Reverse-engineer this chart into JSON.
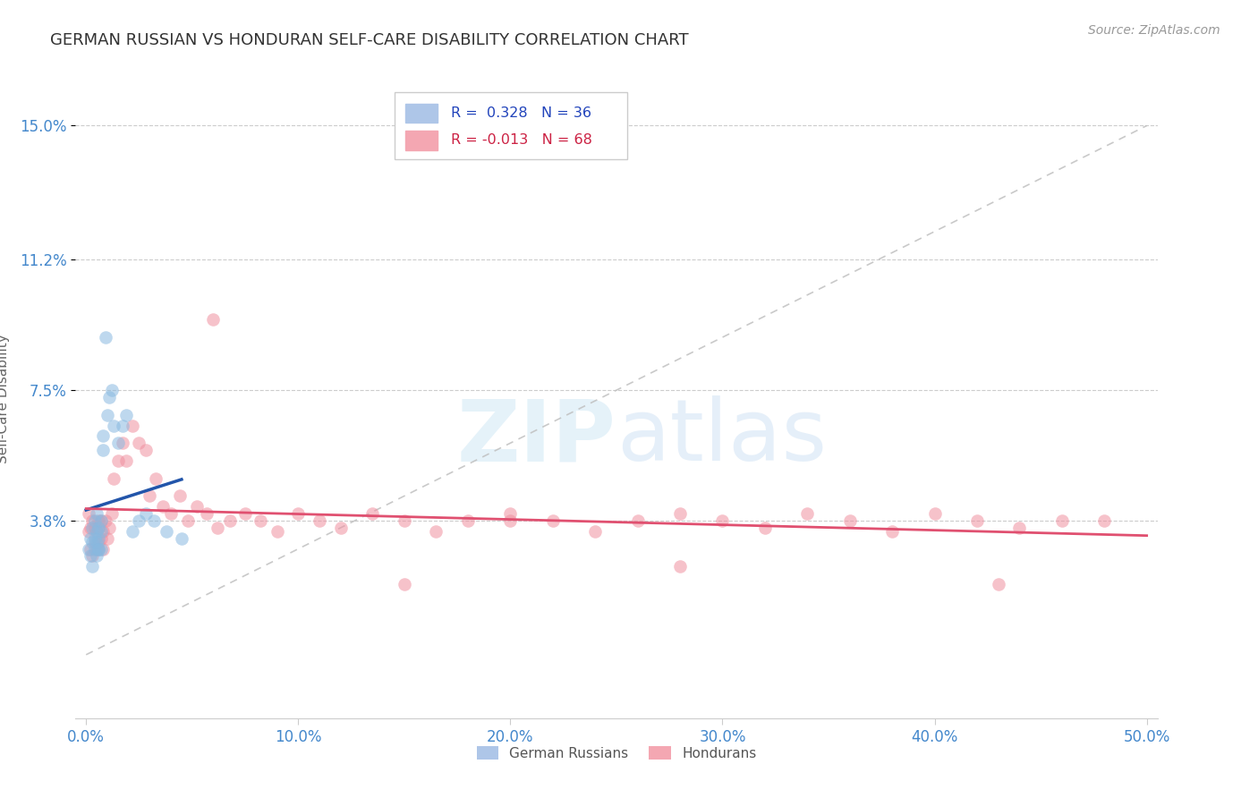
{
  "title": "GERMAN RUSSIAN VS HONDURAN SELF-CARE DISABILITY CORRELATION CHART",
  "source": "Source: ZipAtlas.com",
  "ylabel": "Self-Care Disability",
  "xlim": [
    -0.005,
    0.505
  ],
  "ylim": [
    -0.018,
    0.163
  ],
  "xticks": [
    0.0,
    0.1,
    0.2,
    0.3,
    0.4,
    0.5
  ],
  "yticks": [
    0.038,
    0.075,
    0.112,
    0.15
  ],
  "yticklabels": [
    "3.8%",
    "7.5%",
    "11.2%",
    "15.0%"
  ],
  "grid_color": "#cccccc",
  "background_color": "#ffffff",
  "blue_color": "#89b9e0",
  "pink_color": "#f090a0",
  "trendline_blue_color": "#2255aa",
  "trendline_pink_color": "#e05070",
  "diagonal_color": "#c0c0c0",
  "title_color": "#333333",
  "axis_label_color": "#666666",
  "tick_label_color": "#4488cc",
  "title_fontsize": 13,
  "source_fontsize": 10,
  "axis_label_fontsize": 11,
  "tick_fontsize": 12,
  "gr_x": [
    0.001,
    0.002,
    0.002,
    0.003,
    0.003,
    0.003,
    0.004,
    0.004,
    0.004,
    0.005,
    0.005,
    0.005,
    0.005,
    0.006,
    0.006,
    0.006,
    0.006,
    0.007,
    0.007,
    0.007,
    0.008,
    0.008,
    0.009,
    0.01,
    0.011,
    0.012,
    0.013,
    0.015,
    0.017,
    0.019,
    0.022,
    0.025,
    0.028,
    0.032,
    0.038,
    0.045
  ],
  "gr_y": [
    0.03,
    0.028,
    0.033,
    0.025,
    0.032,
    0.036,
    0.03,
    0.033,
    0.038,
    0.028,
    0.032,
    0.035,
    0.04,
    0.03,
    0.033,
    0.036,
    0.03,
    0.035,
    0.038,
    0.03,
    0.058,
    0.062,
    0.09,
    0.068,
    0.073,
    0.075,
    0.065,
    0.06,
    0.065,
    0.068,
    0.035,
    0.038,
    0.04,
    0.038,
    0.035,
    0.033
  ],
  "hon_x": [
    0.001,
    0.001,
    0.002,
    0.002,
    0.003,
    0.003,
    0.004,
    0.004,
    0.005,
    0.005,
    0.006,
    0.006,
    0.006,
    0.007,
    0.007,
    0.008,
    0.008,
    0.009,
    0.01,
    0.011,
    0.012,
    0.013,
    0.015,
    0.017,
    0.019,
    0.022,
    0.025,
    0.028,
    0.03,
    0.033,
    0.036,
    0.04,
    0.044,
    0.048,
    0.052,
    0.057,
    0.062,
    0.068,
    0.075,
    0.082,
    0.09,
    0.1,
    0.11,
    0.12,
    0.135,
    0.15,
    0.165,
    0.18,
    0.2,
    0.22,
    0.24,
    0.26,
    0.28,
    0.3,
    0.32,
    0.34,
    0.36,
    0.38,
    0.4,
    0.42,
    0.44,
    0.46,
    0.28,
    0.06,
    0.15,
    0.2,
    0.43,
    0.48
  ],
  "hon_y": [
    0.035,
    0.04,
    0.03,
    0.036,
    0.028,
    0.038,
    0.032,
    0.036,
    0.03,
    0.035,
    0.038,
    0.032,
    0.036,
    0.033,
    0.038,
    0.03,
    0.035,
    0.038,
    0.033,
    0.036,
    0.04,
    0.05,
    0.055,
    0.06,
    0.055,
    0.065,
    0.06,
    0.058,
    0.045,
    0.05,
    0.042,
    0.04,
    0.045,
    0.038,
    0.042,
    0.04,
    0.036,
    0.038,
    0.04,
    0.038,
    0.035,
    0.04,
    0.038,
    0.036,
    0.04,
    0.038,
    0.035,
    0.038,
    0.04,
    0.038,
    0.035,
    0.038,
    0.04,
    0.038,
    0.036,
    0.04,
    0.038,
    0.035,
    0.04,
    0.038,
    0.036,
    0.038,
    0.025,
    0.095,
    0.02,
    0.038,
    0.02,
    0.038
  ]
}
